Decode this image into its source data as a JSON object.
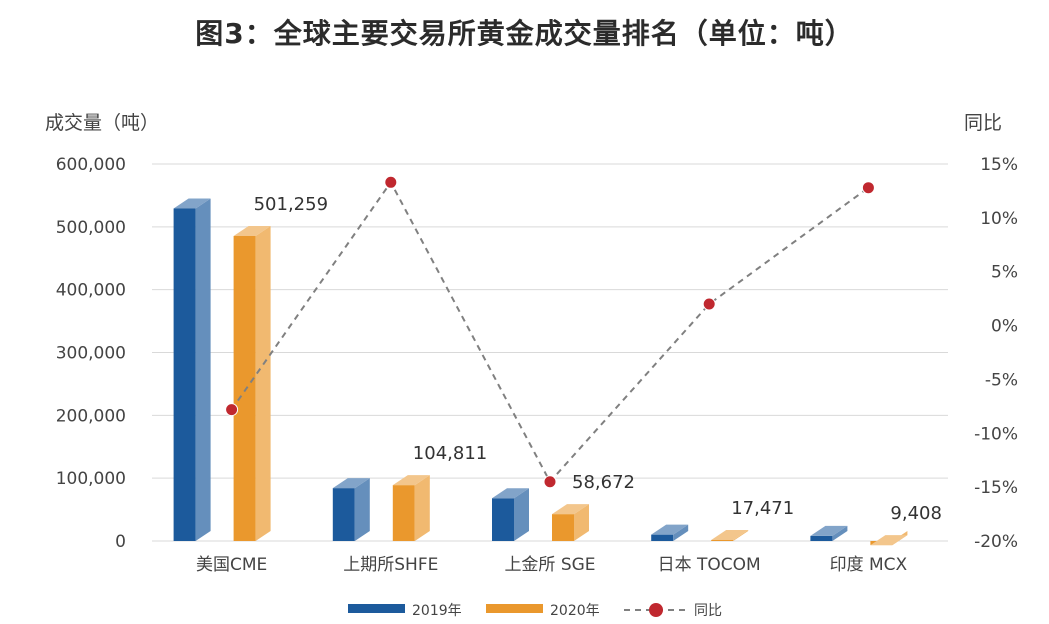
{
  "chart_data": {
    "type": "bar",
    "title": "图3：全球主要交易所黄金成交量排名（单位：吨）",
    "ylabel": "成交量（吨）",
    "y2label": "同比",
    "categories": [
      "美国CME",
      "上期所SHFE",
      "上金所 SGE",
      "日本 TOCOM",
      "印度 MCX"
    ],
    "ylim": [
      0,
      600000
    ],
    "yticks": [
      "0",
      "100,000",
      "200,000",
      "300,000",
      "400,000",
      "500,000",
      "600,000"
    ],
    "y2lim": [
      -0.2,
      0.15
    ],
    "y2ticks": [
      "15%",
      "10%",
      "5%",
      "0%",
      "-5%",
      "-10%",
      "-15%",
      "-20%"
    ],
    "series": [
      {
        "name": "2019年",
        "type": "bar",
        "color": "#1c5a9c",
        "values": [
          545000,
          100000,
          84000,
          26000,
          24000
        ]
      },
      {
        "name": "2020年",
        "type": "bar",
        "color": "#ea982d",
        "values": [
          501259,
          104811,
          58672,
          17471,
          9408
        ]
      },
      {
        "name": "同比",
        "type": "line",
        "color": "#c0282f",
        "values": [
          -0.078,
          0.133,
          -0.145,
          0.02,
          0.128
        ]
      }
    ],
    "data_labels": [
      "501,259",
      "104,811",
      "58,672",
      "17,471",
      "9,408"
    ],
    "grid": true,
    "legend_position": "bottom"
  }
}
